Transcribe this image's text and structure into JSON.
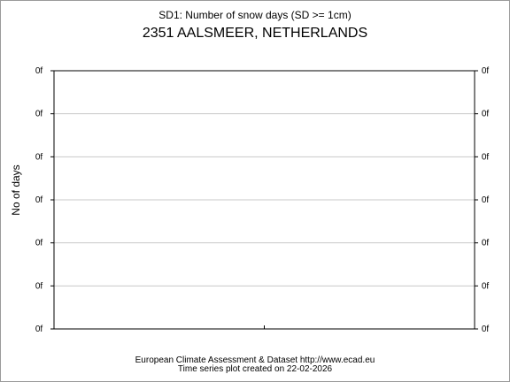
{
  "chart_data": {
    "type": "line",
    "title": "SD1: Number of snow days (SD >= 1cm)",
    "subtitle": "2351 AALSMEER, NETHERLANDS",
    "ylabel": "No of days",
    "xlabel": "",
    "y_tick_labels": [
      "0f",
      "0f",
      "0f",
      "0f",
      "0f",
      "0f",
      "0f"
    ],
    "x_tick_labels": [],
    "series": [],
    "grid": true,
    "legend": "none"
  },
  "footer": {
    "line1": "European Climate Assessment & Dataset  http://www.ecad.eu",
    "line2": "Time series plot created on 22-02-2026"
  },
  "colors": {
    "plot_border": "#000000",
    "grid": "#c8c8c8",
    "text": "#000000"
  }
}
